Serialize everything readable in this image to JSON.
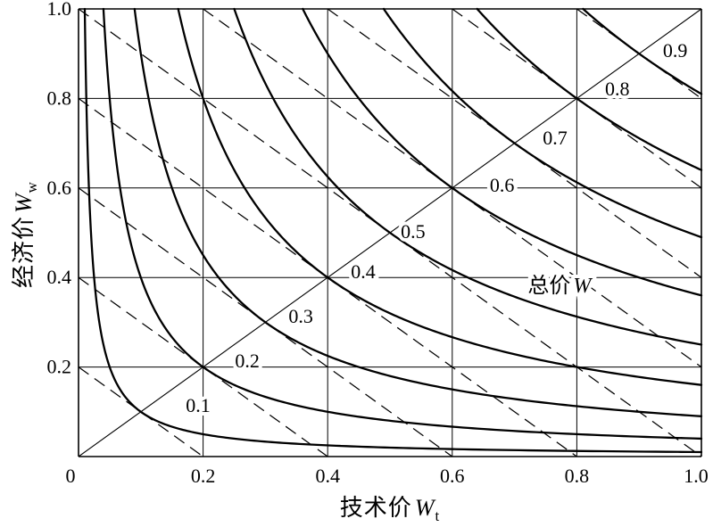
{
  "figure": {
    "background": "#ffffff",
    "ink": "#000000"
  },
  "axes": {
    "x_title_text": "技术价",
    "x_title_var": "W",
    "x_title_sub": "t",
    "y_title_text": "经济价",
    "y_title_var": "W",
    "y_title_sub": "w",
    "x_tick_labels": [
      "0",
      "0.2",
      "0.4",
      "0.6",
      "0.8",
      "1.0"
    ],
    "y_tick_labels": [
      "0.2",
      "0.4",
      "0.6",
      "0.8",
      "1.0"
    ]
  },
  "chart_data": {
    "type": "line",
    "xlabel": "技术价Wt",
    "ylabel": "经济价Ww",
    "xlim": [
      0,
      1
    ],
    "ylim": [
      0,
      1
    ],
    "x_ticks": [
      0,
      0.2,
      0.4,
      0.6,
      0.8,
      1
    ],
    "y_ticks": [
      0,
      0.2,
      0.4,
      0.6,
      0.8,
      1
    ],
    "grid": true,
    "grid_step": 0.2,
    "diagonal": {
      "from": [
        0,
        0
      ],
      "to": [
        1,
        1
      ]
    },
    "levels": [
      0.1,
      0.2,
      0.3,
      0.4,
      0.5,
      0.6,
      0.7,
      0.8,
      0.9
    ],
    "solid_curves": {
      "equation": "Wt * Ww = W^2 (equal total-price hyperbolas, W = sqrt(Wt*Ww))",
      "curves": [
        {
          "W": 0.1,
          "xy_product": 0.01,
          "diagonal_point": [
            0.1,
            0.1
          ]
        },
        {
          "W": 0.2,
          "xy_product": 0.04,
          "diagonal_point": [
            0.2,
            0.2
          ]
        },
        {
          "W": 0.3,
          "xy_product": 0.09,
          "diagonal_point": [
            0.3,
            0.3
          ]
        },
        {
          "W": 0.4,
          "xy_product": 0.16,
          "diagonal_point": [
            0.4,
            0.4
          ]
        },
        {
          "W": 0.5,
          "xy_product": 0.25,
          "diagonal_point": [
            0.5,
            0.5
          ]
        },
        {
          "W": 0.6,
          "xy_product": 0.36,
          "diagonal_point": [
            0.6,
            0.6
          ]
        },
        {
          "W": 0.7,
          "xy_product": 0.49,
          "diagonal_point": [
            0.7,
            0.7
          ]
        },
        {
          "W": 0.8,
          "xy_product": 0.64,
          "diagonal_point": [
            0.8,
            0.8
          ]
        },
        {
          "W": 0.9,
          "xy_product": 0.81,
          "diagonal_point": [
            0.9,
            0.9
          ]
        }
      ]
    },
    "dashed_lines": {
      "equation": "Wt + Ww = 2W (tangent lines of slope -1 through diagonal points)",
      "lines": [
        {
          "W": 0.1,
          "from": [
            0.0,
            0.2
          ],
          "to": [
            0.2,
            0.0
          ]
        },
        {
          "W": 0.2,
          "from": [
            0.0,
            0.4
          ],
          "to": [
            0.4,
            0.0
          ]
        },
        {
          "W": 0.3,
          "from": [
            0.0,
            0.6
          ],
          "to": [
            0.6,
            0.0
          ]
        },
        {
          "W": 0.4,
          "from": [
            0.0,
            0.8
          ],
          "to": [
            0.8,
            0.0
          ]
        },
        {
          "W": 0.5,
          "from": [
            0.0,
            1.0
          ],
          "to": [
            1.0,
            0.0
          ]
        },
        {
          "W": 0.6,
          "from": [
            0.2,
            1.0
          ],
          "to": [
            1.0,
            0.2
          ]
        },
        {
          "W": 0.7,
          "from": [
            0.4,
            1.0
          ],
          "to": [
            1.0,
            0.4
          ]
        },
        {
          "W": 0.8,
          "from": [
            0.6,
            1.0
          ],
          "to": [
            1.0,
            0.6
          ]
        },
        {
          "W": 0.9,
          "from": [
            0.8,
            1.0
          ],
          "to": [
            1.0,
            0.8
          ]
        }
      ]
    },
    "level_labels": [
      {
        "text": "0.1",
        "x": 0.192,
        "y": 0.114
      },
      {
        "text": "0.2",
        "x": 0.271,
        "y": 0.213
      },
      {
        "text": "0.3",
        "x": 0.357,
        "y": 0.313
      },
      {
        "text": "0.4",
        "x": 0.457,
        "y": 0.412
      },
      {
        "text": "0.5",
        "x": 0.537,
        "y": 0.502
      },
      {
        "text": "0.6",
        "x": 0.68,
        "y": 0.606
      },
      {
        "text": "0.7",
        "x": 0.765,
        "y": 0.711
      },
      {
        "text": "0.8",
        "x": 0.865,
        "y": 0.821
      },
      {
        "text": "0.9",
        "x": 0.958,
        "y": 0.906
      }
    ],
    "annotation": {
      "text": "总价",
      "var": "W",
      "x": 0.772,
      "y": 0.382
    }
  }
}
